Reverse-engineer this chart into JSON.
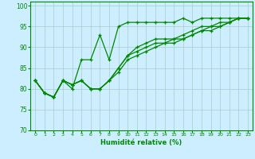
{
  "title": "",
  "xlabel": "Humidité relative (%)",
  "ylabel": "",
  "bg_color": "#cceeff",
  "grid_color": "#aacccc",
  "line_color": "#008800",
  "xlim": [
    -0.5,
    23.5
  ],
  "ylim": [
    70,
    101
  ],
  "xticks": [
    0,
    1,
    2,
    3,
    4,
    5,
    6,
    7,
    8,
    9,
    10,
    11,
    12,
    13,
    14,
    15,
    16,
    17,
    18,
    19,
    20,
    21,
    22,
    23
  ],
  "yticks": [
    70,
    75,
    80,
    85,
    90,
    95,
    100
  ],
  "series": [
    [
      82,
      79,
      78,
      82,
      80,
      87,
      87,
      93,
      87,
      95,
      96,
      96,
      96,
      96,
      96,
      96,
      97,
      96,
      97,
      97,
      97,
      97,
      97,
      97
    ],
    [
      82,
      79,
      78,
      82,
      81,
      82,
      80,
      80,
      82,
      85,
      88,
      90,
      91,
      92,
      92,
      92,
      93,
      94,
      95,
      95,
      95,
      96,
      97,
      97
    ],
    [
      82,
      79,
      78,
      82,
      81,
      82,
      80,
      80,
      82,
      85,
      88,
      89,
      90,
      91,
      91,
      92,
      92,
      93,
      94,
      95,
      96,
      96,
      97,
      97
    ],
    [
      82,
      79,
      78,
      82,
      81,
      82,
      80,
      80,
      82,
      84,
      87,
      88,
      89,
      90,
      91,
      91,
      92,
      93,
      94,
      94,
      95,
      96,
      97,
      97
    ]
  ]
}
